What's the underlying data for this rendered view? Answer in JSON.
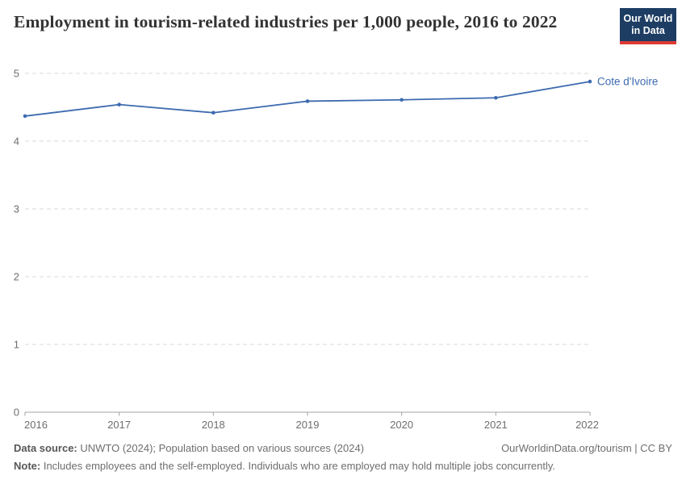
{
  "header": {
    "title": "Employment in tourism-related industries per 1,000 people, 2016 to 2022",
    "logo": {
      "line1": "Our World",
      "line2": "in Data"
    }
  },
  "chart_data": {
    "type": "line",
    "title": "Employment in tourism-related industries per 1,000 people, 2016 to 2022",
    "x": [
      2016,
      2017,
      2018,
      2019,
      2020,
      2021,
      2022
    ],
    "x_tick_labels": [
      "2016",
      "2017",
      "2018",
      "2019",
      "2020",
      "2021",
      "2022"
    ],
    "y_ticks": [
      0,
      1,
      2,
      3,
      4,
      5
    ],
    "y_tick_labels": [
      "0",
      "1",
      "2",
      "3",
      "4",
      "5"
    ],
    "xlim": [
      2016,
      2022
    ],
    "ylim": [
      0,
      5
    ],
    "grid": "horizontal-dashed",
    "legend_position": "end-of-line-label",
    "xlabel": "",
    "ylabel": "",
    "series": [
      {
        "name": "Cote d'Ivoire",
        "color": "#3d6bb0",
        "values": [
          4.37,
          4.54,
          4.42,
          4.59,
          4.61,
          4.64,
          4.88
        ]
      }
    ]
  },
  "footer": {
    "data_source_label": "Data source:",
    "data_source_text": " UNWTO (2024); Population based on various sources (2024)",
    "link_text": "OurWorldinData.org/tourism | CC BY",
    "note_label": "Note:",
    "note_text": " Includes employees and the self-employed. Individuals who are employed may hold multiple jobs concurrently."
  },
  "colors": {
    "line": "#3d6bb0",
    "grid": "#dadada",
    "axis": "#a3a3a3",
    "tick_label": "#6e6e6e",
    "title": "#333333",
    "logo_bg": "#1d3d63",
    "logo_strip": "#dc3b35"
  }
}
